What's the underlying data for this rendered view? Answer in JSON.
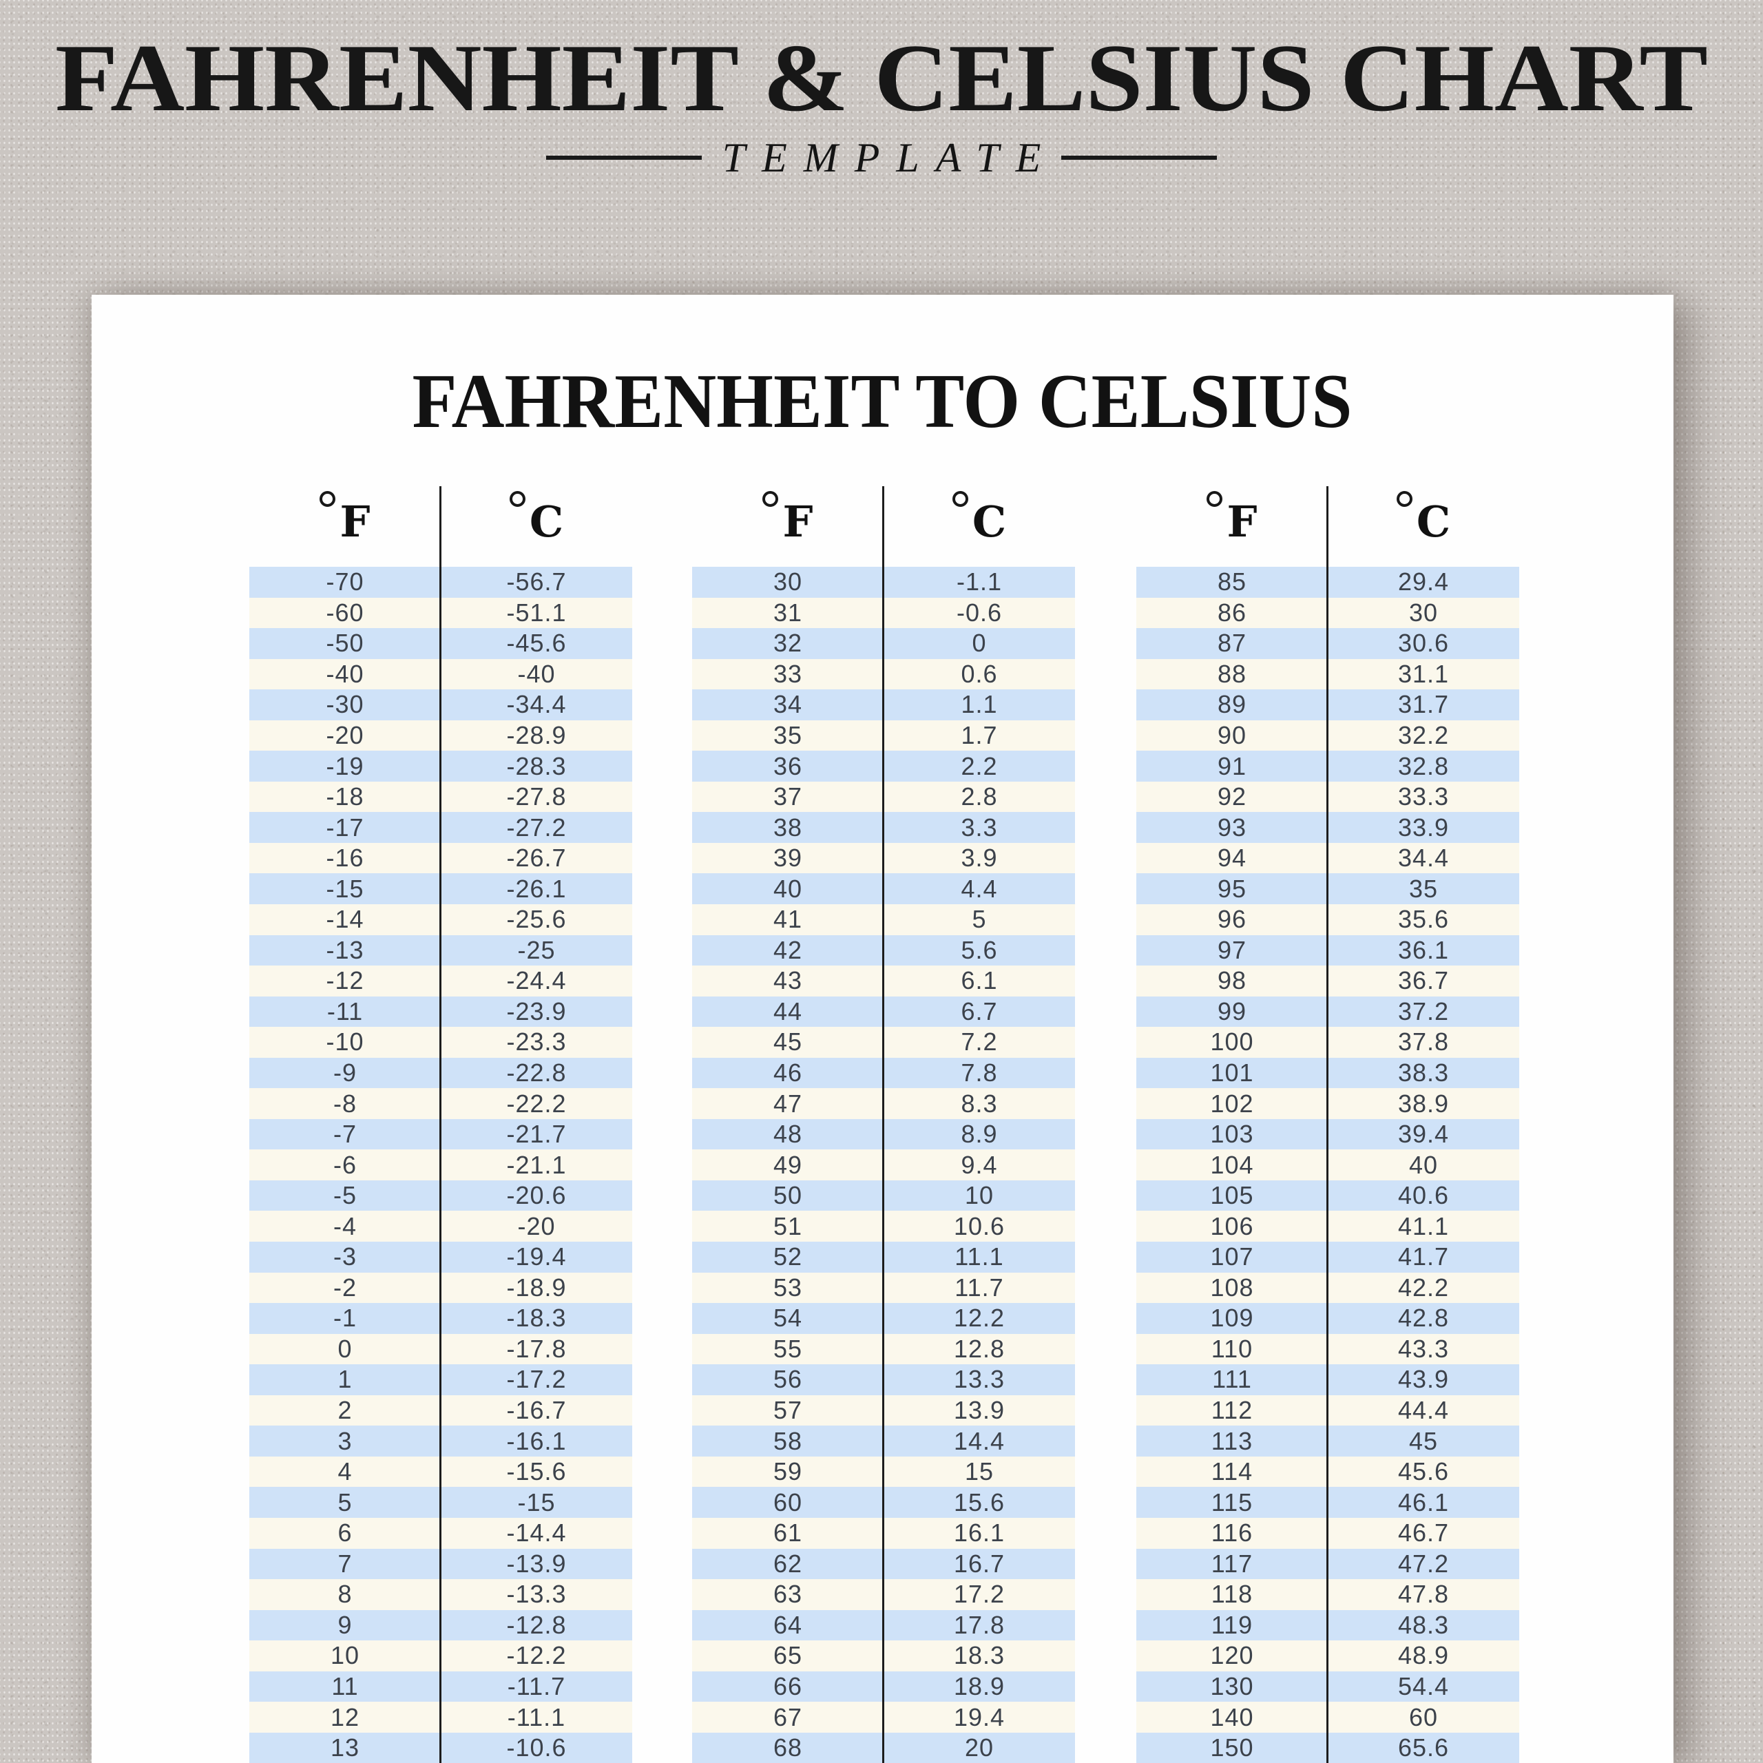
{
  "header": {
    "title": "FAHRENHEIT & CELSIUS CHART",
    "subtitle": "TEMPLATE"
  },
  "paper": {
    "heading": "FAHRENHEIT TO CELSIUS",
    "degree_symbol": "°",
    "fahrenheit_label": "F",
    "celsius_label": "C",
    "groups": [
      {
        "rows": [
          [
            "-70",
            "-56.7"
          ],
          [
            "-60",
            "-51.1"
          ],
          [
            "-50",
            "-45.6"
          ],
          [
            "-40",
            "-40"
          ],
          [
            "-30",
            "-34.4"
          ],
          [
            "-20",
            "-28.9"
          ],
          [
            "-19",
            "-28.3"
          ],
          [
            "-18",
            "-27.8"
          ],
          [
            "-17",
            "-27.2"
          ],
          [
            "-16",
            "-26.7"
          ],
          [
            "-15",
            "-26.1"
          ],
          [
            "-14",
            "-25.6"
          ],
          [
            "-13",
            "-25"
          ],
          [
            "-12",
            "-24.4"
          ],
          [
            "-11",
            "-23.9"
          ],
          [
            "-10",
            "-23.3"
          ],
          [
            "-9",
            "-22.8"
          ],
          [
            "-8",
            "-22.2"
          ],
          [
            "-7",
            "-21.7"
          ],
          [
            "-6",
            "-21.1"
          ],
          [
            "-5",
            "-20.6"
          ],
          [
            "-4",
            "-20"
          ],
          [
            "-3",
            "-19.4"
          ],
          [
            "-2",
            "-18.9"
          ],
          [
            "-1",
            "-18.3"
          ],
          [
            "0",
            "-17.8"
          ],
          [
            "1",
            "-17.2"
          ],
          [
            "2",
            "-16.7"
          ],
          [
            "3",
            "-16.1"
          ],
          [
            "4",
            "-15.6"
          ],
          [
            "5",
            "-15"
          ],
          [
            "6",
            "-14.4"
          ],
          [
            "7",
            "-13.9"
          ],
          [
            "8",
            "-13.3"
          ],
          [
            "9",
            "-12.8"
          ],
          [
            "10",
            "-12.2"
          ],
          [
            "11",
            "-11.7"
          ],
          [
            "12",
            "-11.1"
          ],
          [
            "13",
            "-10.6"
          ]
        ]
      },
      {
        "rows": [
          [
            "30",
            "-1.1"
          ],
          [
            "31",
            "-0.6"
          ],
          [
            "32",
            "0"
          ],
          [
            "33",
            "0.6"
          ],
          [
            "34",
            "1.1"
          ],
          [
            "35",
            "1.7"
          ],
          [
            "36",
            "2.2"
          ],
          [
            "37",
            "2.8"
          ],
          [
            "38",
            "3.3"
          ],
          [
            "39",
            "3.9"
          ],
          [
            "40",
            "4.4"
          ],
          [
            "41",
            "5"
          ],
          [
            "42",
            "5.6"
          ],
          [
            "43",
            "6.1"
          ],
          [
            "44",
            "6.7"
          ],
          [
            "45",
            "7.2"
          ],
          [
            "46",
            "7.8"
          ],
          [
            "47",
            "8.3"
          ],
          [
            "48",
            "8.9"
          ],
          [
            "49",
            "9.4"
          ],
          [
            "50",
            "10"
          ],
          [
            "51",
            "10.6"
          ],
          [
            "52",
            "11.1"
          ],
          [
            "53",
            "11.7"
          ],
          [
            "54",
            "12.2"
          ],
          [
            "55",
            "12.8"
          ],
          [
            "56",
            "13.3"
          ],
          [
            "57",
            "13.9"
          ],
          [
            "58",
            "14.4"
          ],
          [
            "59",
            "15"
          ],
          [
            "60",
            "15.6"
          ],
          [
            "61",
            "16.1"
          ],
          [
            "62",
            "16.7"
          ],
          [
            "63",
            "17.2"
          ],
          [
            "64",
            "17.8"
          ],
          [
            "65",
            "18.3"
          ],
          [
            "66",
            "18.9"
          ],
          [
            "67",
            "19.4"
          ],
          [
            "68",
            "20"
          ]
        ]
      },
      {
        "rows": [
          [
            "85",
            "29.4"
          ],
          [
            "86",
            "30"
          ],
          [
            "87",
            "30.6"
          ],
          [
            "88",
            "31.1"
          ],
          [
            "89",
            "31.7"
          ],
          [
            "90",
            "32.2"
          ],
          [
            "91",
            "32.8"
          ],
          [
            "92",
            "33.3"
          ],
          [
            "93",
            "33.9"
          ],
          [
            "94",
            "34.4"
          ],
          [
            "95",
            "35"
          ],
          [
            "96",
            "35.6"
          ],
          [
            "97",
            "36.1"
          ],
          [
            "98",
            "36.7"
          ],
          [
            "99",
            "37.2"
          ],
          [
            "100",
            "37.8"
          ],
          [
            "101",
            "38.3"
          ],
          [
            "102",
            "38.9"
          ],
          [
            "103",
            "39.4"
          ],
          [
            "104",
            "40"
          ],
          [
            "105",
            "40.6"
          ],
          [
            "106",
            "41.1"
          ],
          [
            "107",
            "41.7"
          ],
          [
            "108",
            "42.2"
          ],
          [
            "109",
            "42.8"
          ],
          [
            "110",
            "43.3"
          ],
          [
            "111",
            "43.9"
          ],
          [
            "112",
            "44.4"
          ],
          [
            "113",
            "45"
          ],
          [
            "114",
            "45.6"
          ],
          [
            "115",
            "46.1"
          ],
          [
            "116",
            "46.7"
          ],
          [
            "117",
            "47.2"
          ],
          [
            "118",
            "47.8"
          ],
          [
            "119",
            "48.3"
          ],
          [
            "120",
            "48.9"
          ],
          [
            "130",
            "54.4"
          ],
          [
            "140",
            "60"
          ],
          [
            "150",
            "65.6"
          ]
        ]
      }
    ]
  },
  "colors": {
    "background": "#cbc6c2",
    "paper": "#fefefe",
    "row_blue": "#cfe2f8",
    "row_cream": "#fbf8ec",
    "ink": "#171717",
    "cell_text": "#3c424b"
  }
}
